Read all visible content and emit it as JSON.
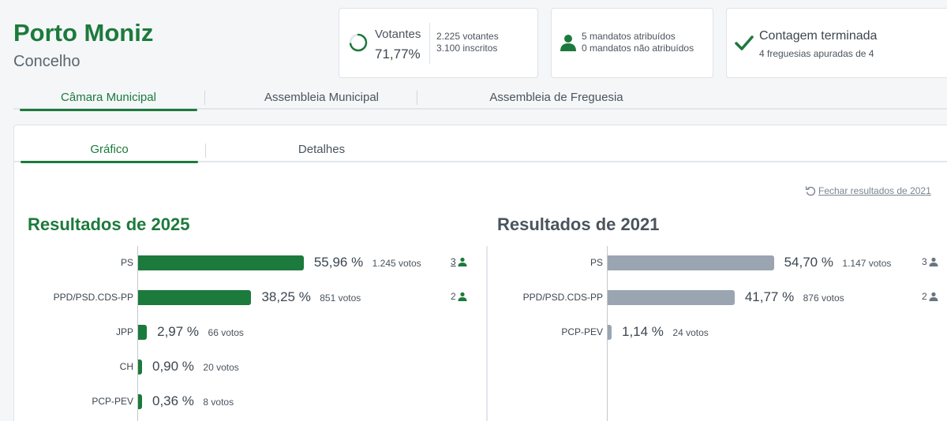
{
  "header": {
    "title": "Porto Moniz",
    "subtitle": "Concelho"
  },
  "cards": {
    "turnout": {
      "label": "Votantes",
      "percent": "71,77%",
      "percent_value": 71.77,
      "voters": "2.225 votantes",
      "registered": "3.100 inscritos"
    },
    "mandates": {
      "assigned": "5 mandatos atribuídos",
      "unassigned": "0 mandatos não atribuídos"
    },
    "count": {
      "title": "Contagem terminada",
      "detail": "4 freguesias apuradas de 4"
    }
  },
  "tabs": [
    "Câmara Municipal",
    "Assembleia Municipal",
    "Assembleia de Freguesia"
  ],
  "subtabs": [
    "Gráfico",
    "Detalhes"
  ],
  "close_link": "Fechar resultados de 2021",
  "results": {
    "current": {
      "title": "Resultados de 2025",
      "rows": [
        {
          "party": "PS",
          "pct": "55,96 %",
          "value": 55.96,
          "votes": "1.245 votos",
          "mandates": "3"
        },
        {
          "party": "PPD/PSD.CDS-PP",
          "pct": "38,25 %",
          "value": 38.25,
          "votes": "851 votos",
          "mandates": "2"
        },
        {
          "party": "JPP",
          "pct": "2,97 %",
          "value": 2.97,
          "votes": "66 votos",
          "mandates": ""
        },
        {
          "party": "CH",
          "pct": "0,90 %",
          "value": 0.9,
          "votes": "20 votos",
          "mandates": ""
        },
        {
          "party": "PCP-PEV",
          "pct": "0,36 %",
          "value": 0.36,
          "votes": "8 votos",
          "mandates": ""
        }
      ]
    },
    "previous": {
      "title": "Resultados de 2021",
      "rows": [
        {
          "party": "PS",
          "pct": "54,70 %",
          "value": 54.7,
          "votes": "1.147 votos",
          "mandates": "3"
        },
        {
          "party": "PPD/PSD.CDS-PP",
          "pct": "41,77 %",
          "value": 41.77,
          "votes": "876 votos",
          "mandates": "2"
        },
        {
          "party": "PCP-PEV",
          "pct": "1,14 %",
          "value": 1.14,
          "votes": "24 votos",
          "mandates": ""
        }
      ]
    }
  },
  "colors": {
    "accent": "#1c7a3c",
    "previous_bar": "#9aa5b1"
  }
}
